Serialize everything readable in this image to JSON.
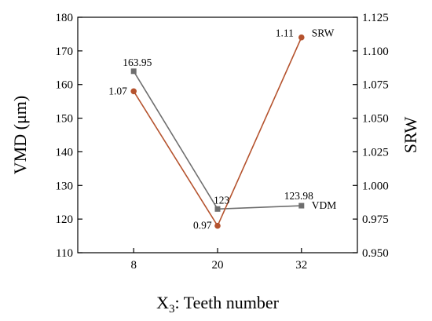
{
  "chart_data": {
    "type": "line",
    "x": [
      8,
      20,
      32
    ],
    "xlabel": {
      "main": "X",
      "sub": "3",
      "rest": ": Teeth number"
    },
    "xticks": [
      "8",
      "20",
      "32"
    ],
    "left_axis": {
      "label": "VMD (μm)",
      "ylim": [
        110,
        180
      ],
      "ticks": [
        "110",
        "120",
        "130",
        "140",
        "150",
        "160",
        "170",
        "180"
      ]
    },
    "right_axis": {
      "label": "SRW",
      "ylim": [
        0.95,
        1.125
      ],
      "ticks": [
        "0.950",
        "0.975",
        "1.000",
        "1.025",
        "1.050",
        "1.075",
        "1.100",
        "1.125"
      ]
    },
    "series": [
      {
        "name": "VDM",
        "axis": "left",
        "color": "#6e6e6e",
        "marker": "square",
        "values": [
          163.95,
          123,
          123.98
        ],
        "labels": [
          "163.95",
          "123",
          "123.98"
        ]
      },
      {
        "name": "SRW",
        "axis": "right",
        "color": "#b5532e",
        "marker": "circle",
        "values": [
          1.07,
          0.97,
          1.11
        ],
        "labels": [
          "1.07",
          "0.97",
          "1.11"
        ]
      }
    ]
  }
}
